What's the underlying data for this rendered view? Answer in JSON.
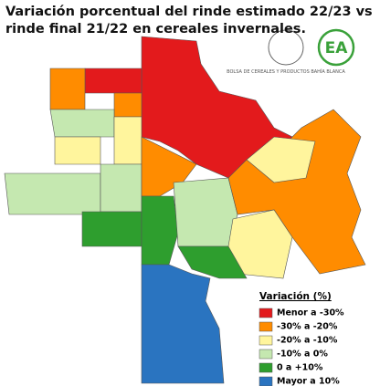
{
  "header": {
    "title": "Variación porcentual del rinde estimado 22/23 vs rinde final 21/22 en cereales invernales."
  },
  "logos": {
    "bolsa": "BOLSA DE CEREALES Y PRODUCTOS BAHÍA BLANCA",
    "ea": "EA"
  },
  "legend": {
    "title": "Variación (%)",
    "items": [
      {
        "label": "Menor a -30%",
        "color": "#e31a1c"
      },
      {
        "label": "-30% a -20%",
        "color": "#ff8c00"
      },
      {
        "label": "-20% a -10%",
        "color": "#fff59d"
      },
      {
        "label": "-10% a 0%",
        "color": "#c5e8b0"
      },
      {
        "label": "0 a +10%",
        "color": "#2e9e2e"
      },
      {
        "label": "Mayor a 10%",
        "color": "#2a74c0"
      }
    ]
  }
}
